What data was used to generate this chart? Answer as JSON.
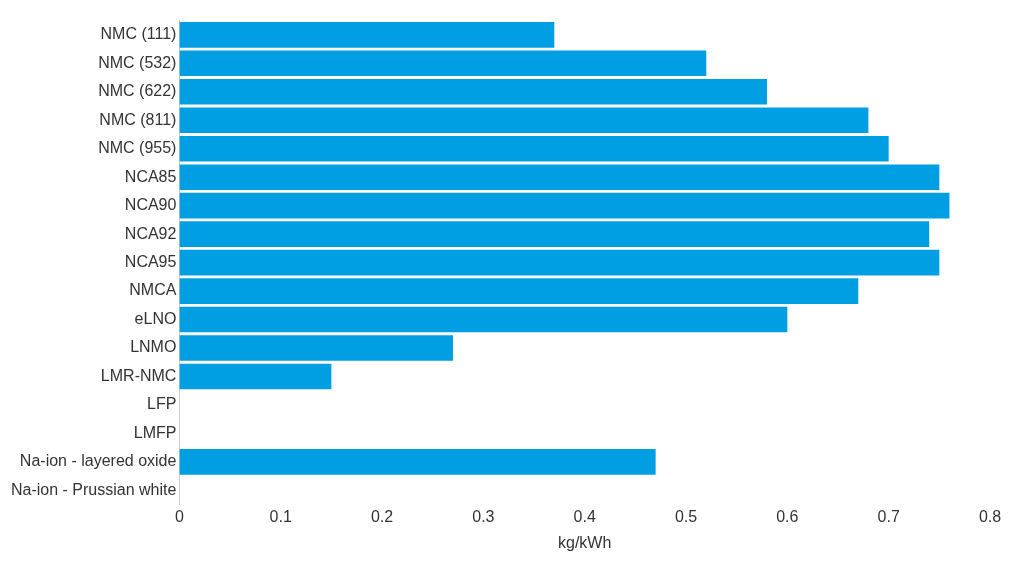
{
  "chart_data": {
    "type": "bar",
    "orientation": "horizontal",
    "xlabel": "kg/kWh",
    "categories": [
      "NMC (111)",
      "NMC (532)",
      "NMC (622)",
      "NMC (811)",
      "NMC (955)",
      "NCA85",
      "NCA90",
      "NCA92",
      "NCA95",
      "NMCA",
      "eLNO",
      "LNMO",
      "LMR-NMC",
      "LFP",
      "LMFP",
      "Na-ion - layered oxide",
      "Na-ion - Prussian white"
    ],
    "values": [
      0.37,
      0.52,
      0.58,
      0.68,
      0.7,
      0.75,
      0.76,
      0.74,
      0.75,
      0.67,
      0.6,
      0.27,
      0.15,
      0,
      0,
      0.47,
      0
    ],
    "color": "#009fe3",
    "xlim": [
      0,
      0.8
    ],
    "xticks": [
      0,
      0.1,
      0.2,
      0.3,
      0.4,
      0.5,
      0.6,
      0.7,
      0.8
    ],
    "grid": false,
    "legend": false
  }
}
